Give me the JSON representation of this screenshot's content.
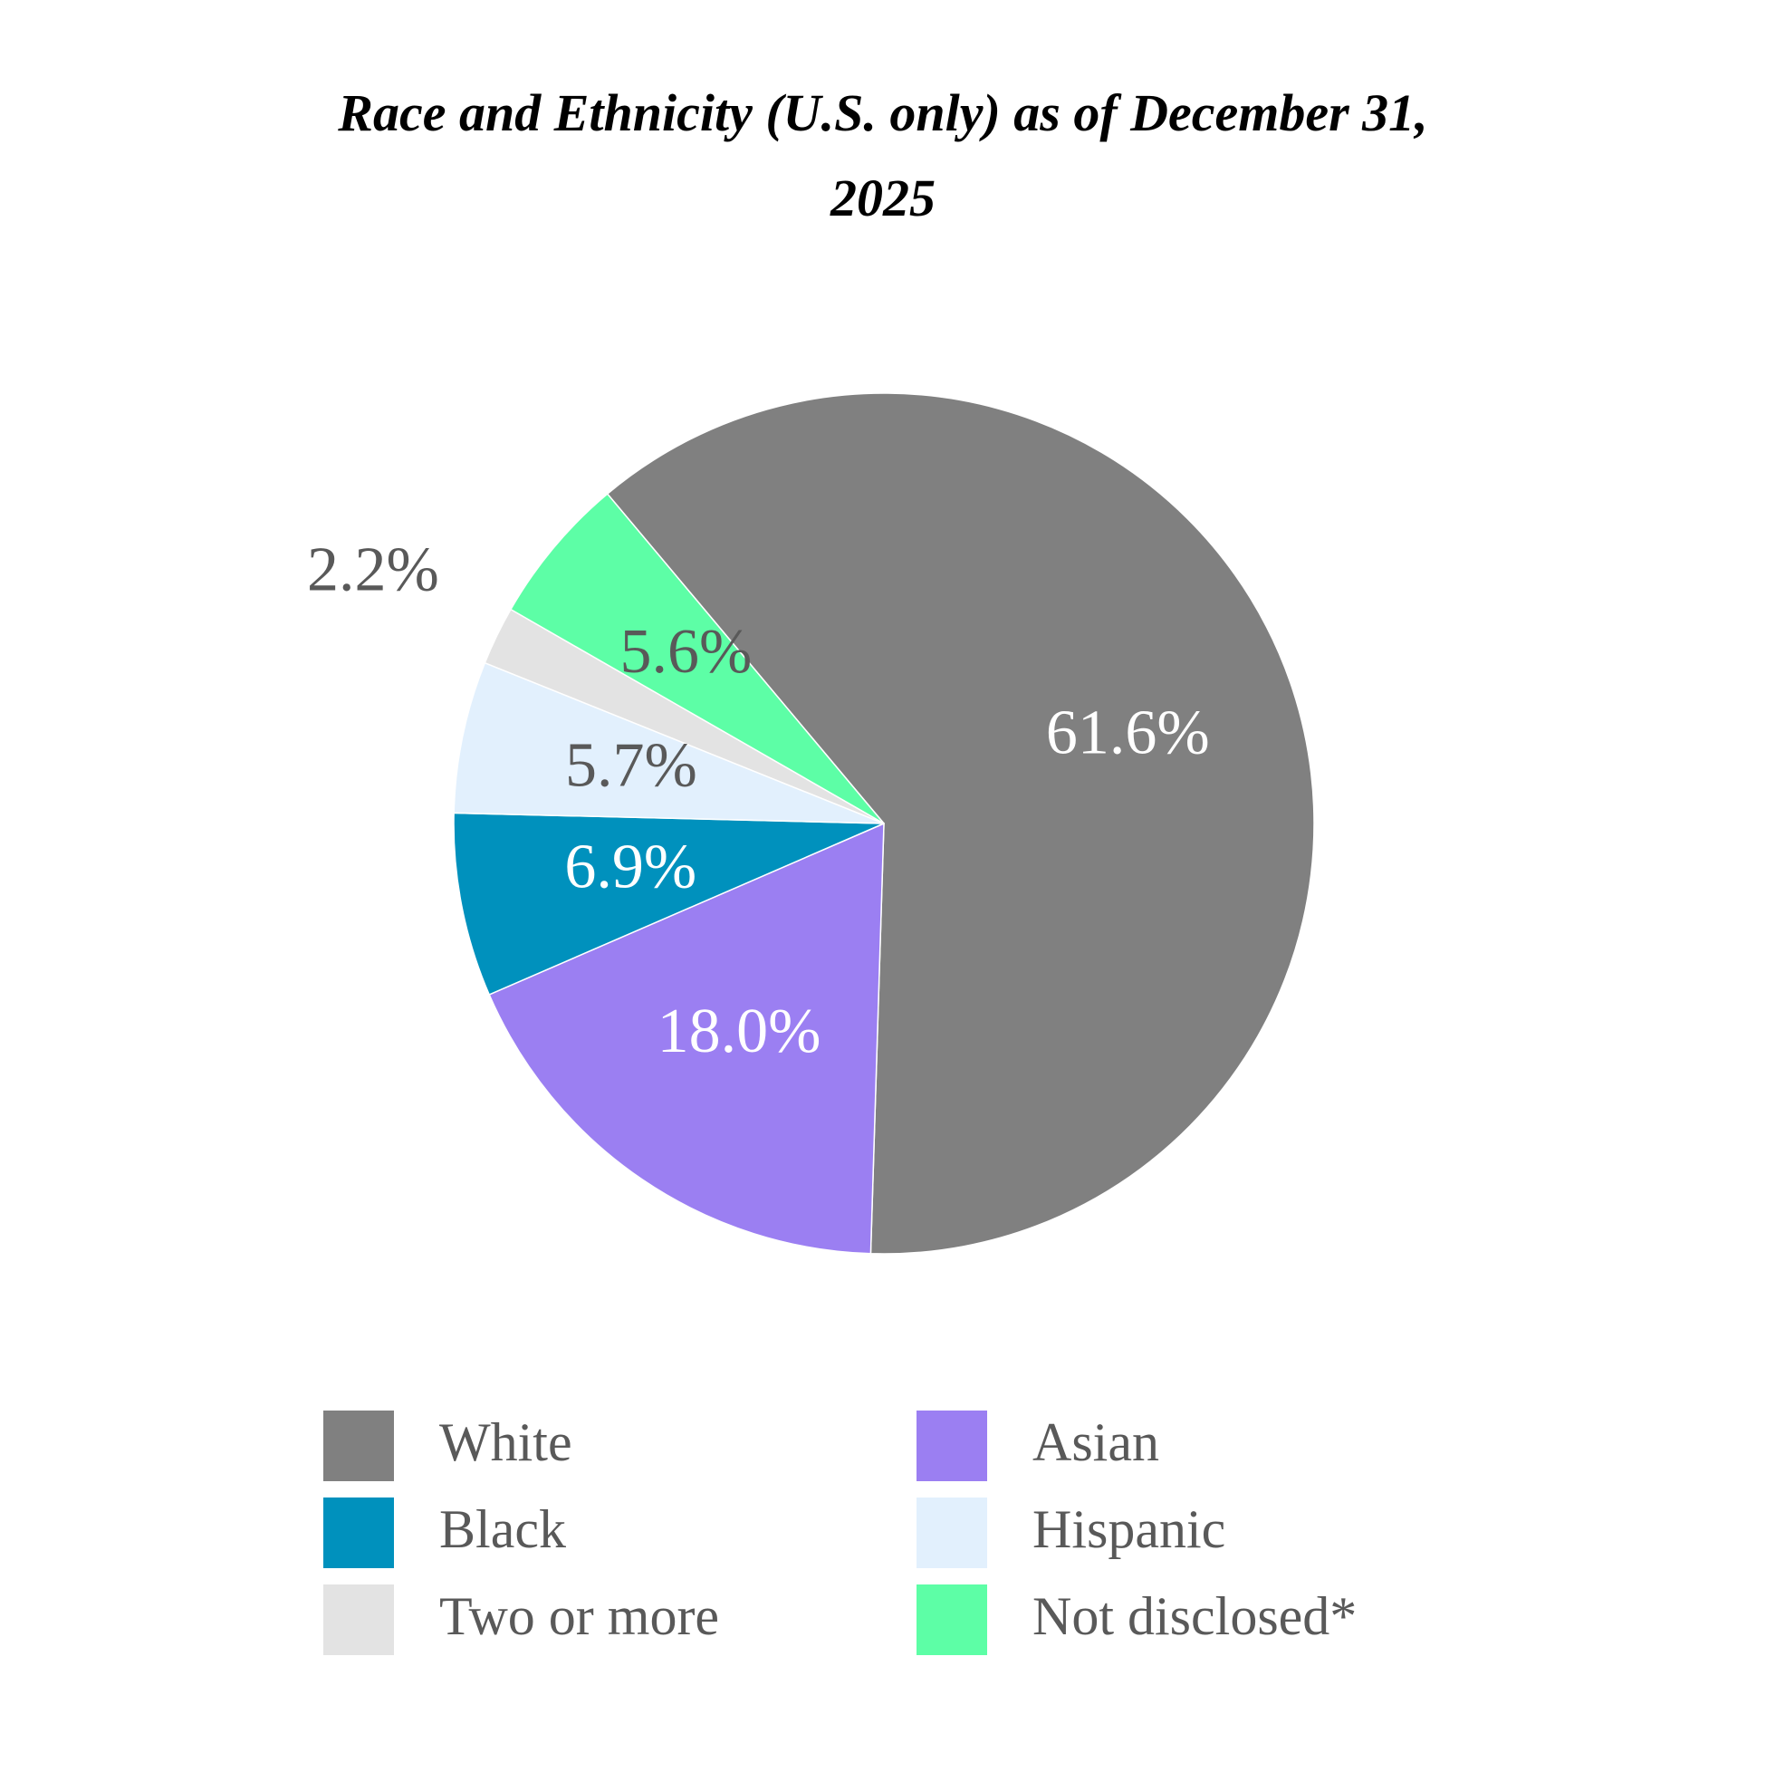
{
  "chart_data": {
    "type": "pie",
    "title": "Race and Ethnicity (U.S. only) as of December 31, 2025",
    "categories": [
      "White",
      "Asian",
      "Black",
      "Hispanic",
      "Two or more",
      "Not disclosed*"
    ],
    "values": [
      61.6,
      18.0,
      6.9,
      5.7,
      2.2,
      5.6
    ],
    "value_labels": [
      "61.6%",
      "18.0%",
      "6.9%",
      "5.7%",
      "2.2%",
      "5.6%"
    ],
    "colors": [
      "#808080",
      "#9b7ff2",
      "#0091bd",
      "#e2f0fd",
      "#e3e3e3",
      "#5dfea6"
    ],
    "label_colors": [
      "#ffffff",
      "#ffffff",
      "#ffffff",
      "#595959",
      "#595959",
      "#595959"
    ],
    "start_angle": -40,
    "legend": "bottom"
  }
}
